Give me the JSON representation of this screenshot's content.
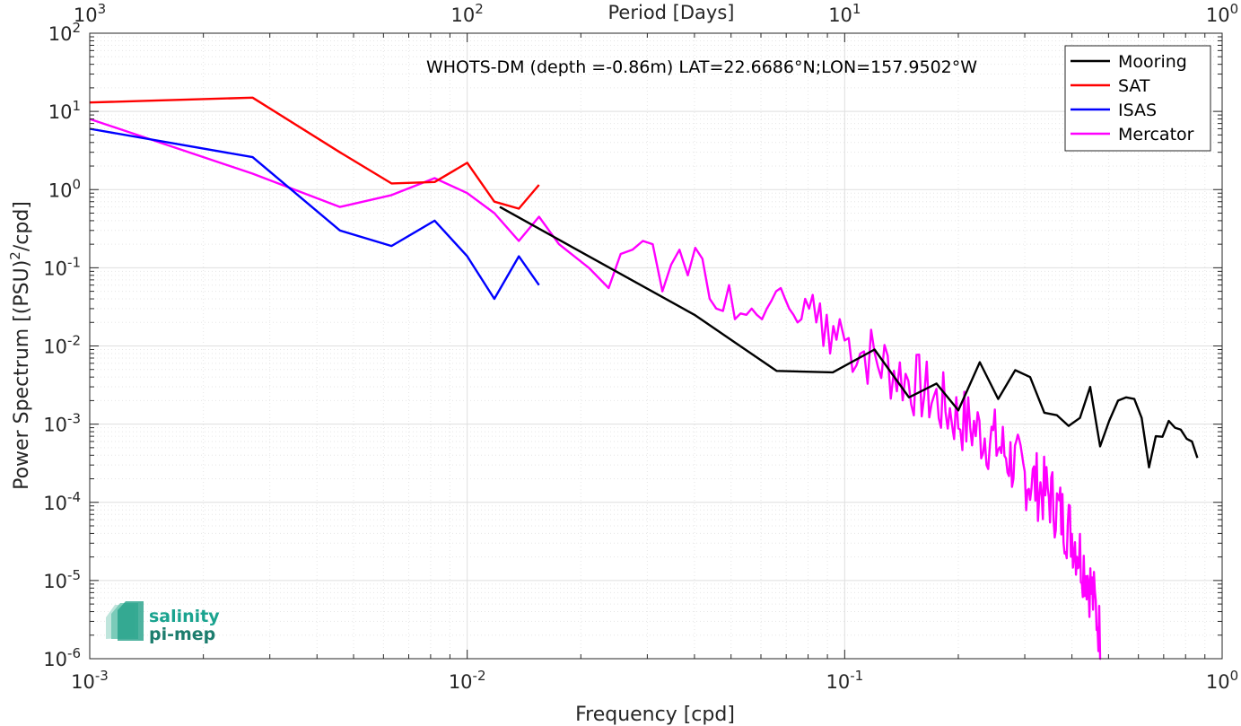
{
  "chart_data": {
    "type": "line",
    "title": "WHOTS-DM (depth =-0.86m) LAT=22.6686°N;LON=157.9502°W",
    "xlabel": "Frequency [cpd]",
    "ylabel": "Power Spectrum [(PSU)^2/cpd]",
    "top_xlabel": "Period [Days]",
    "x_scale": "log",
    "y_scale": "log",
    "xlim": [
      0.001,
      1
    ],
    "ylim": [
      1e-06,
      100
    ],
    "grid": true,
    "legend_position": "top-right",
    "x_ticks": [
      {
        "value": 0.001,
        "base": "10",
        "exp": "-3"
      },
      {
        "value": 0.01,
        "base": "10",
        "exp": "-2"
      },
      {
        "value": 0.1,
        "base": "10",
        "exp": "-1"
      },
      {
        "value": 1,
        "base": "10",
        "exp": "0"
      }
    ],
    "y_ticks": [
      {
        "value": 1e-06,
        "base": "10",
        "exp": "-6"
      },
      {
        "value": 1e-05,
        "base": "10",
        "exp": "-5"
      },
      {
        "value": 0.0001,
        "base": "10",
        "exp": "-4"
      },
      {
        "value": 0.001,
        "base": "10",
        "exp": "-3"
      },
      {
        "value": 0.01,
        "base": "10",
        "exp": "-2"
      },
      {
        "value": 0.1,
        "base": "10",
        "exp": "-1"
      },
      {
        "value": 1,
        "base": "10",
        "exp": "0"
      },
      {
        "value": 10,
        "base": "10",
        "exp": "1"
      },
      {
        "value": 100,
        "base": "10",
        "exp": "2"
      }
    ],
    "top_ticks": [
      {
        "value": 0.001,
        "base": "10",
        "exp": "3"
      },
      {
        "value": 0.01,
        "base": "10",
        "exp": "2"
      },
      {
        "value": 0.1,
        "base": "10",
        "exp": "1"
      },
      {
        "value": 1,
        "base": "10",
        "exp": "0"
      }
    ],
    "series": [
      {
        "name": "Mooring",
        "color": "#000000",
        "points": [
          [
            0.0122,
            0.6
          ],
          [
            0.04,
            0.025
          ],
          [
            0.066,
            0.0048
          ],
          [
            0.093,
            0.0046
          ],
          [
            0.12,
            0.009
          ],
          [
            0.148,
            0.0022
          ],
          [
            0.175,
            0.0033
          ],
          [
            0.2,
            0.0015
          ],
          [
            0.228,
            0.0062
          ],
          [
            0.255,
            0.0021
          ],
          [
            0.283,
            0.0049
          ],
          [
            0.31,
            0.004
          ],
          [
            0.338,
            0.0014
          ],
          [
            0.365,
            0.0013
          ],
          [
            0.392,
            0.00095
          ],
          [
            0.42,
            0.0012
          ],
          [
            0.447,
            0.003
          ],
          [
            0.475,
            0.00052
          ],
          [
            0.502,
            0.0011
          ],
          [
            0.53,
            0.002
          ],
          [
            0.557,
            0.0022
          ],
          [
            0.585,
            0.0021
          ],
          [
            0.612,
            0.0012
          ],
          [
            0.64,
            0.00028
          ],
          [
            0.667,
            0.0007
          ],
          [
            0.695,
            0.00069
          ],
          [
            0.722,
            0.0011
          ],
          [
            0.75,
            0.0009
          ],
          [
            0.777,
            0.00085
          ],
          [
            0.805,
            0.00065
          ],
          [
            0.832,
            0.0006
          ],
          [
            0.86,
            0.00037
          ]
        ]
      },
      {
        "name": "SAT",
        "color": "#ff0000",
        "points": [
          [
            0.001,
            13
          ],
          [
            0.0027,
            15
          ],
          [
            0.0046,
            3.0
          ],
          [
            0.0063,
            1.2
          ],
          [
            0.0082,
            1.25
          ],
          [
            0.01,
            2.2
          ],
          [
            0.0118,
            0.7
          ],
          [
            0.0137,
            0.57
          ],
          [
            0.0155,
            1.15
          ]
        ]
      },
      {
        "name": "ISAS",
        "color": "#0000ff",
        "points": [
          [
            0.001,
            6.0
          ],
          [
            0.0027,
            2.6
          ],
          [
            0.0046,
            0.3
          ],
          [
            0.0063,
            0.19
          ],
          [
            0.0082,
            0.4
          ],
          [
            0.01,
            0.14
          ],
          [
            0.0118,
            0.04
          ],
          [
            0.0137,
            0.14
          ],
          [
            0.0155,
            0.06
          ]
        ]
      },
      {
        "name": "Mercator",
        "color": "#ff00ff",
        "noisy_tail": {
          "from": 0.1,
          "to": 0.48,
          "step": 0.0025,
          "seed": 7
        },
        "points": [
          [
            0.001,
            8.0
          ],
          [
            0.0027,
            1.6
          ],
          [
            0.0046,
            0.6
          ],
          [
            0.0063,
            0.85
          ],
          [
            0.0082,
            1.4
          ],
          [
            0.01,
            0.9
          ],
          [
            0.0118,
            0.5
          ],
          [
            0.0137,
            0.22
          ],
          [
            0.0155,
            0.45
          ],
          [
            0.0175,
            0.2
          ],
          [
            0.021,
            0.1
          ],
          [
            0.0237,
            0.055
          ],
          [
            0.0255,
            0.15
          ],
          [
            0.0274,
            0.17
          ],
          [
            0.0292,
            0.22
          ],
          [
            0.031,
            0.2
          ],
          [
            0.0329,
            0.05
          ],
          [
            0.0347,
            0.11
          ],
          [
            0.0365,
            0.17
          ],
          [
            0.0384,
            0.08
          ],
          [
            0.0402,
            0.18
          ],
          [
            0.042,
            0.13
          ],
          [
            0.0439,
            0.04
          ],
          [
            0.0457,
            0.03
          ],
          [
            0.0476,
            0.028
          ],
          [
            0.0494,
            0.06
          ],
          [
            0.0512,
            0.022
          ],
          [
            0.053,
            0.026
          ],
          [
            0.0549,
            0.025
          ],
          [
            0.0567,
            0.03
          ],
          [
            0.0585,
            0.025
          ],
          [
            0.0604,
            0.022
          ],
          [
            0.0622,
            0.03
          ],
          [
            0.064,
            0.038
          ],
          [
            0.0658,
            0.05
          ],
          [
            0.0677,
            0.055
          ],
          [
            0.0695,
            0.04
          ],
          [
            0.0713,
            0.03
          ],
          [
            0.0732,
            0.025
          ],
          [
            0.075,
            0.02
          ],
          [
            0.0768,
            0.022
          ],
          [
            0.0786,
            0.04
          ],
          [
            0.0805,
            0.03
          ],
          [
            0.0823,
            0.045
          ],
          [
            0.0841,
            0.02
          ],
          [
            0.086,
            0.035
          ],
          [
            0.0878,
            0.01
          ],
          [
            0.0896,
            0.025
          ],
          [
            0.0915,
            0.008
          ],
          [
            0.0933,
            0.018
          ],
          [
            0.0951,
            0.012
          ],
          [
            0.097,
            0.022
          ]
        ],
        "tail_trend": [
          [
            0.1,
            0.012
          ],
          [
            0.15,
            0.0035
          ],
          [
            0.2,
            0.0012
          ],
          [
            0.25,
            0.0006
          ],
          [
            0.3,
            0.00022
          ],
          [
            0.35,
            0.00012
          ],
          [
            0.4,
            4e-05
          ],
          [
            0.44,
            1.2e-05
          ],
          [
            0.47,
            3e-06
          ],
          [
            0.48,
            8e-07
          ]
        ]
      }
    ]
  },
  "logo": {
    "line1": "salinity",
    "line2": "pi-mep",
    "color": "#1aa38f"
  }
}
